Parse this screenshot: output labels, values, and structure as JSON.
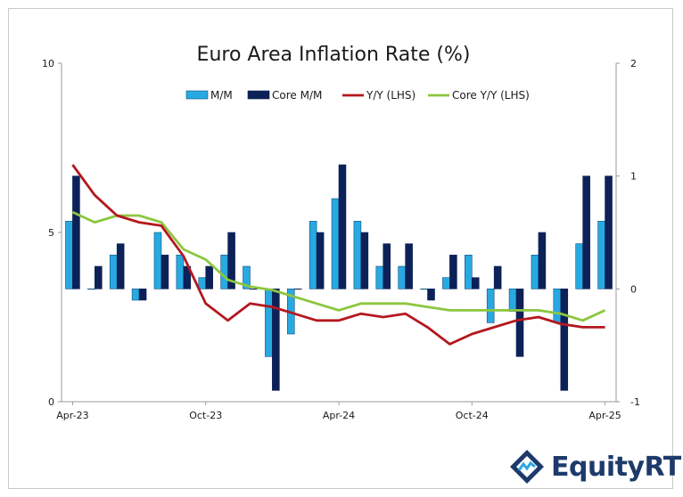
{
  "chart_data": {
    "type": "bar+line",
    "title": "Euro Area Inflation Rate (%)",
    "x_labels": [
      "Apr-23",
      "Oct-23",
      "Apr-24",
      "Oct-24",
      "Apr-25"
    ],
    "months": [
      "Apr-23",
      "May-23",
      "Jun-23",
      "Jul-23",
      "Aug-23",
      "Sep-23",
      "Oct-23",
      "Nov-23",
      "Dec-23",
      "Jan-24",
      "Feb-24",
      "Mar-24",
      "Apr-24",
      "May-24",
      "Jun-24",
      "Jul-24",
      "Aug-24",
      "Sep-24",
      "Oct-24",
      "Nov-24",
      "Dec-24",
      "Jan-25",
      "Feb-25",
      "Mar-25",
      "Apr-25"
    ],
    "left_axis": {
      "min": 0,
      "max": 10,
      "ticks": [
        "0",
        "5",
        "10"
      ]
    },
    "right_axis": {
      "min": -1,
      "max": 2,
      "ticks": [
        "-1",
        "0",
        "1",
        "2"
      ]
    },
    "series": [
      {
        "name": "M/M",
        "kind": "bar",
        "axis": "right",
        "color": "#29a9e1",
        "values": [
          0.6,
          0.0,
          0.3,
          -0.1,
          0.5,
          0.3,
          0.1,
          0.3,
          0.2,
          -0.6,
          -0.4,
          0.6,
          0.8,
          0.6,
          0.2,
          0.2,
          0.0,
          0.1,
          0.3,
          -0.3,
          -0.2,
          0.3,
          -0.3,
          0.4,
          0.6
        ]
      },
      {
        "name": "Core M/M",
        "kind": "bar",
        "axis": "right",
        "color": "#0c2157",
        "values": [
          1.0,
          0.2,
          0.4,
          -0.1,
          0.3,
          0.2,
          0.2,
          0.5,
          0.0,
          -0.9,
          0.0,
          0.5,
          1.1,
          0.5,
          0.4,
          0.4,
          -0.1,
          0.3,
          0.1,
          0.2,
          -0.6,
          0.5,
          -0.9,
          1.0,
          1.0
        ]
      },
      {
        "name": "Y/Y (LHS)",
        "kind": "line",
        "axis": "left",
        "color": "#b4181e",
        "values": [
          7.0,
          6.1,
          5.5,
          5.3,
          5.2,
          4.3,
          2.9,
          2.4,
          2.9,
          2.8,
          2.6,
          2.4,
          2.4,
          2.6,
          2.5,
          2.6,
          2.2,
          1.7,
          2.0,
          2.2,
          2.4,
          2.5,
          2.3,
          2.2,
          2.2
        ]
      },
      {
        "name": "Core Y/Y (LHS)",
        "kind": "line",
        "axis": "left",
        "color": "#8cc63f",
        "values": [
          5.6,
          5.3,
          5.5,
          5.5,
          5.3,
          4.5,
          4.2,
          3.6,
          3.4,
          3.3,
          3.1,
          2.9,
          2.7,
          2.9,
          2.9,
          2.9,
          2.8,
          2.7,
          2.7,
          2.7,
          2.7,
          2.7,
          2.6,
          2.4,
          2.7
        ]
      }
    ],
    "legend_position": "top"
  },
  "branding": {
    "logo_text": "EquityRT"
  }
}
